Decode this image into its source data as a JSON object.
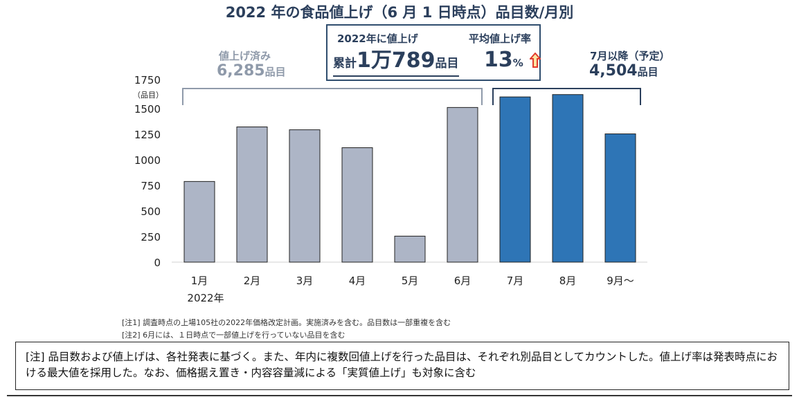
{
  "title": "2022 年の食品値上げ（6 月 1 日時点）品目数/月別",
  "summary": {
    "label": "2022年に値上げ",
    "total_prefix": "累計",
    "total_value": "1万789",
    "total_unit": "品目",
    "rate_label": "平均値上げ率",
    "rate_value": "13",
    "rate_unit": "%",
    "arrow_icon": "up-arrow-icon",
    "arrow_color": "#e23b2e"
  },
  "done": {
    "label": "値上げ済み",
    "value": "6,285",
    "unit": "品目"
  },
  "planned": {
    "label": "7月以降（予定）",
    "value": "4,504",
    "unit": "品目"
  },
  "chart_data": {
    "type": "bar",
    "categories": [
      "1月",
      "2月",
      "3月",
      "4月",
      "5月",
      "6月",
      "7月",
      "8月",
      "9月～"
    ],
    "values": [
      788,
      1321,
      1293,
      1118,
      254,
      1511,
      1614,
      1637,
      1253
    ],
    "colors": [
      "#adb5c6",
      "#adb5c6",
      "#adb5c6",
      "#adb5c6",
      "#adb5c6",
      "#adb5c6",
      "#2e75b6",
      "#2e75b6",
      "#2e75b6"
    ],
    "ylabel": "（品目）",
    "xsub": "2022年",
    "ylim": [
      0,
      1750
    ],
    "yticks": [
      0,
      250,
      500,
      750,
      1000,
      1250,
      1500,
      1750
    ],
    "grid": false
  },
  "notes": [
    "[注1]  調査時点の上場105社の2022年価格改定計画。実施済みを含む。品目数は一部重複を含む",
    "[注2]  6月には、１日時点で一部値上げを行っていない品目を含む"
  ],
  "footnote": "[注] 品目数および値上げは、各社発表に基づく。また、年内に複数回値上げを行った品目は、それぞれ別品目としてカウントした。値上げ率は発表時点における最大値を採用した。なお、価格据え置き・内容容量減による「実質値上げ」も対象に含む"
}
